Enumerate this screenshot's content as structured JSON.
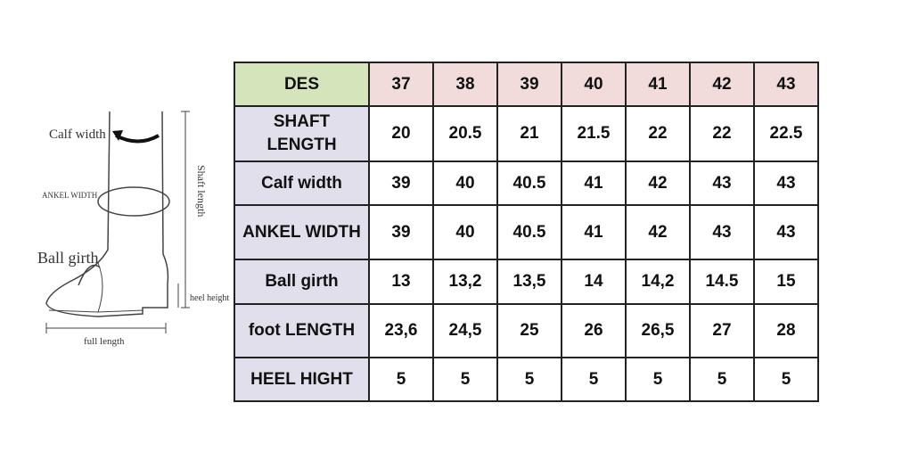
{
  "diagram": {
    "labels": {
      "calf_width": "Calf width",
      "ankel_width": "ANKEL WIDTH",
      "ball_girth": "Ball girth",
      "shaft_length": "Shaft length",
      "heel_height": "heel height",
      "full_length": "full length"
    }
  },
  "table": {
    "header": [
      "DES",
      "37",
      "38",
      "39",
      "40",
      "41",
      "42",
      "43"
    ],
    "rows": [
      [
        "SHAFT LENGTH",
        "20",
        "20.5",
        "21",
        "21.5",
        "22",
        "22",
        "22.5"
      ],
      [
        "Calf width",
        "39",
        "40",
        "40.5",
        "41",
        "42",
        "43",
        "43"
      ],
      [
        "ANKEL WIDTH",
        "39",
        "40",
        "40.5",
        "41",
        "42",
        "43",
        "43"
      ],
      [
        "Ball girth",
        "13",
        "13,2",
        "13,5",
        "14",
        "14,2",
        "14.5",
        "15"
      ],
      [
        "foot LENGTH",
        "23,6",
        "24,5",
        "25",
        "26",
        "26,5",
        "27",
        "28"
      ],
      [
        "HEEL HIGHT",
        "5",
        "5",
        "5",
        "5",
        "5",
        "5",
        "5"
      ]
    ]
  }
}
